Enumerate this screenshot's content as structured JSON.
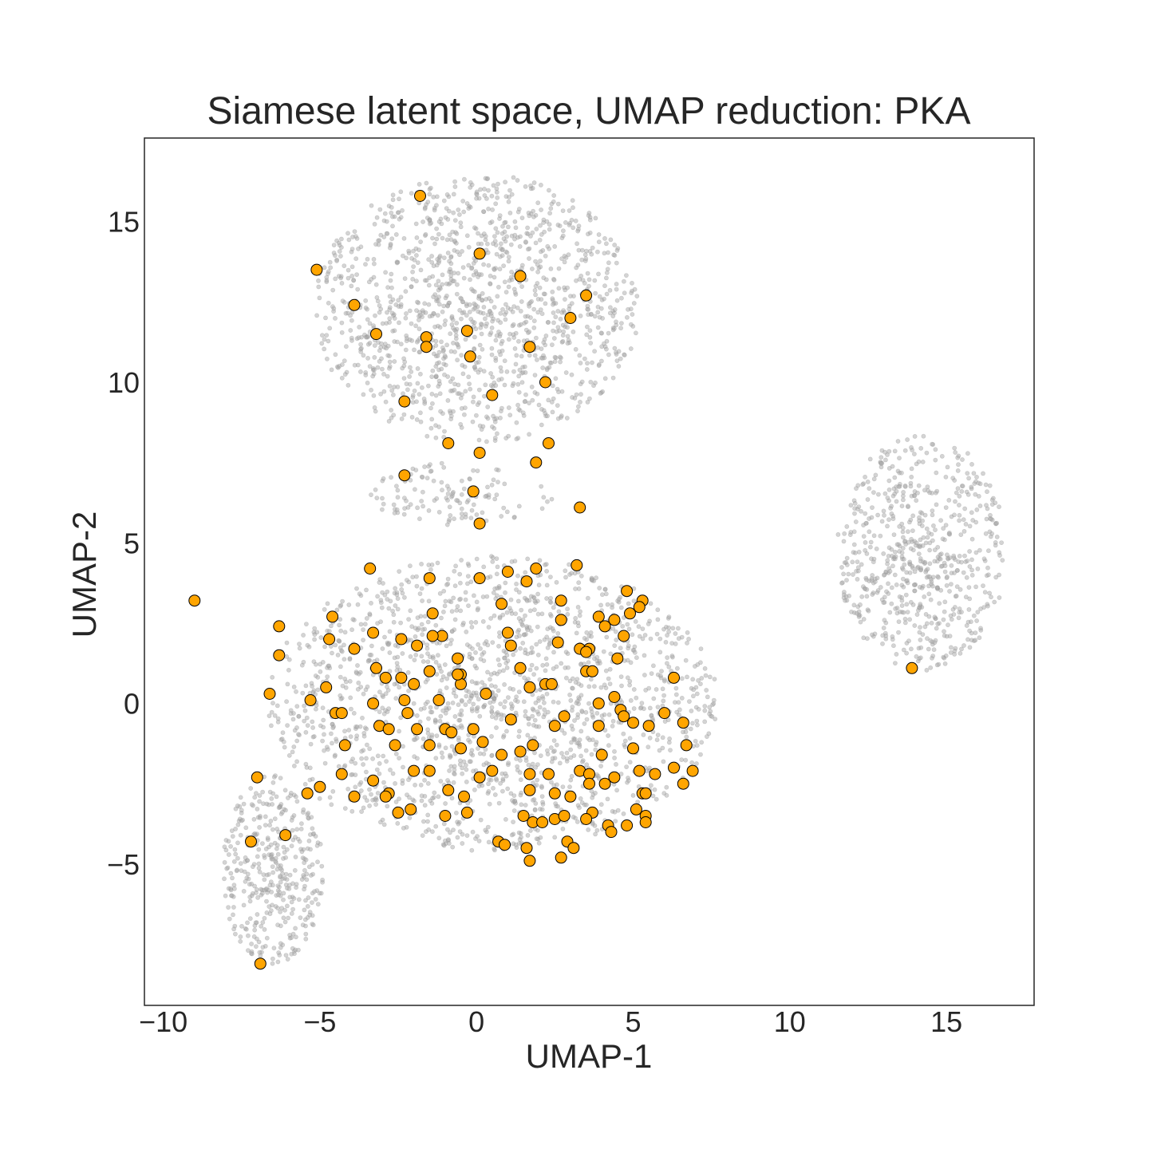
{
  "chart_data": {
    "type": "scatter",
    "title": "Siamese latent space, UMAP reduction: PKA",
    "xlabel": "UMAP-1",
    "ylabel": "UMAP-2",
    "xlim": [
      -10.6,
      17.8
    ],
    "ylim": [
      -9.4,
      17.6
    ],
    "x_ticks": [
      -10,
      -5,
      0,
      5,
      10,
      15
    ],
    "y_ticks": [
      -5,
      0,
      5,
      10,
      15
    ],
    "x_tick_labels": [
      "−10",
      "−5",
      "0",
      "5",
      "10",
      "15"
    ],
    "y_tick_labels": [
      "−5",
      "0",
      "5",
      "10",
      "15"
    ],
    "grid": false,
    "legend": "none",
    "background_clusters": [
      {
        "center": [
          0.0,
          12.3
        ],
        "radius": [
          5.2,
          4.2
        ],
        "count": 1300
      },
      {
        "center": [
          0.5,
          0.0
        ],
        "radius": [
          7.2,
          4.6
        ],
        "count": 1700
      },
      {
        "center": [
          -6.5,
          -5.2
        ],
        "radius": [
          1.6,
          3.0
        ],
        "count": 380
      },
      {
        "center": [
          14.2,
          4.7
        ],
        "radius": [
          2.7,
          3.7
        ],
        "count": 650
      },
      {
        "center": [
          -0.5,
          6.5
        ],
        "radius": [
          3.0,
          1.0
        ],
        "count": 120
      }
    ],
    "series": [
      {
        "color": "#aaaaaa",
        "marker_edge": "#888888",
        "values_note": "background"
      },
      {
        "color": "#ffa500",
        "marker_edge": "#000000",
        "x": [
          -1.8,
          0.1,
          -5.1,
          1.4,
          3.5,
          -3.9,
          3.0,
          -3.2,
          -1.6,
          -0.3,
          -1.6,
          1.7,
          -0.2,
          2.2,
          0.5,
          -2.3,
          2.3,
          -0.9,
          0.1,
          1.9,
          -2.3,
          -0.1,
          3.3,
          0.1,
          -9.0,
          -3.4,
          -1.5,
          1.0,
          1.9,
          3.2,
          0.1,
          1.6,
          0.8,
          2.7,
          4.8,
          5.3,
          5.2,
          4.9,
          3.9,
          4.4,
          2.7,
          4.1,
          -1.4,
          -4.6,
          -6.3,
          -3.3,
          -4.7,
          -2.4,
          -1.1,
          -1.4,
          1.0,
          4.7,
          -3.9,
          -1.9,
          2.6,
          3.3,
          3.6,
          3.5,
          4.5,
          1.1,
          -0.6,
          -6.3,
          -3.2,
          -1.5,
          1.4,
          -0.5,
          3.5,
          3.7,
          -2.9,
          -2.4,
          -4.8,
          -2.0,
          1.7,
          2.2,
          2.4,
          6.3,
          -6.6,
          -3.3,
          -5.3,
          -2.3,
          -1.2,
          -0.5,
          -0.6,
          0.3,
          4.4,
          3.9,
          4.6,
          5.0,
          6.0,
          6.6,
          -4.5,
          -4.3,
          -3.1,
          -2.8,
          -2.2,
          -1.9,
          -1.0,
          -0.8,
          -0.1,
          1.1,
          2.5,
          2.8,
          3.9,
          4.7,
          5.5,
          -4.2,
          -2.6,
          -1.5,
          -0.5,
          0.2,
          0.8,
          1.4,
          1.8,
          4.0,
          5.0,
          6.7,
          -7.0,
          -4.3,
          -3.3,
          -1.5,
          -2.0,
          0.1,
          0.5,
          1.7,
          2.3,
          3.3,
          3.6,
          4.4,
          5.2,
          5.7,
          6.3,
          6.9,
          -5.4,
          -5.0,
          -2.8,
          -2.9,
          -3.9,
          -0.9,
          -0.4,
          1.7,
          2.5,
          3.0,
          3.6,
          4.1,
          5.3,
          5.4,
          6.6,
          -2.5,
          -2.1,
          -1.0,
          -0.3,
          1.5,
          1.8,
          2.1,
          2.5,
          2.8,
          3.7,
          4.2,
          5.1,
          5.4,
          5.4,
          -7.2,
          -6.1,
          0.7,
          0.9,
          1.6,
          2.9,
          3.1,
          3.5,
          4.3,
          4.8,
          1.7,
          2.7,
          -6.9,
          13.9
        ],
        "y": [
          15.8,
          14.0,
          13.5,
          13.3,
          12.7,
          12.4,
          12.0,
          11.5,
          11.4,
          11.6,
          11.1,
          11.1,
          10.8,
          10.0,
          9.6,
          9.4,
          8.1,
          8.1,
          7.8,
          7.5,
          7.1,
          6.6,
          6.1,
          5.6,
          3.2,
          4.2,
          3.9,
          4.1,
          4.2,
          4.3,
          3.9,
          3.8,
          3.1,
          3.2,
          3.5,
          3.2,
          3.0,
          2.8,
          2.7,
          2.6,
          2.6,
          2.4,
          2.8,
          2.7,
          2.4,
          2.2,
          2.0,
          2.0,
          2.1,
          2.1,
          2.2,
          2.1,
          1.7,
          1.8,
          1.9,
          1.7,
          1.7,
          1.6,
          1.4,
          1.8,
          1.4,
          1.5,
          1.1,
          1.0,
          1.1,
          0.9,
          1.0,
          1.0,
          0.8,
          0.8,
          0.5,
          0.6,
          0.5,
          0.6,
          0.6,
          0.8,
          0.3,
          0.0,
          0.1,
          0.1,
          0.1,
          0.6,
          0.9,
          0.3,
          0.2,
          0.0,
          -0.2,
          -0.6,
          -0.3,
          -0.6,
          -0.3,
          -0.3,
          -0.7,
          -0.8,
          -0.3,
          -0.8,
          -0.8,
          -0.9,
          -0.8,
          -0.5,
          -0.7,
          -0.4,
          -0.7,
          -0.4,
          -0.7,
          -1.3,
          -1.3,
          -1.3,
          -1.4,
          -1.2,
          -1.6,
          -1.5,
          -1.3,
          -1.6,
          -1.4,
          -1.3,
          -2.3,
          -2.2,
          -2.4,
          -2.1,
          -2.1,
          -2.3,
          -2.1,
          -2.2,
          -2.2,
          -2.1,
          -2.2,
          -2.3,
          -2.1,
          -2.2,
          -2.0,
          -2.1,
          -2.8,
          -2.6,
          -2.8,
          -2.9,
          -2.9,
          -2.7,
          -2.9,
          -2.7,
          -2.8,
          -2.9,
          -2.5,
          -2.5,
          -2.8,
          -2.8,
          -2.5,
          -3.4,
          -3.3,
          -3.5,
          -3.4,
          -3.5,
          -3.7,
          -3.7,
          -3.6,
          -3.5,
          -3.4,
          -3.8,
          -3.3,
          -3.5,
          -3.7,
          -4.3,
          -4.1,
          -4.3,
          -4.4,
          -4.5,
          -4.3,
          -4.5,
          -3.6,
          -4.0,
          -3.8,
          -4.9,
          -4.8,
          -8.1,
          1.1
        ]
      }
    ]
  }
}
